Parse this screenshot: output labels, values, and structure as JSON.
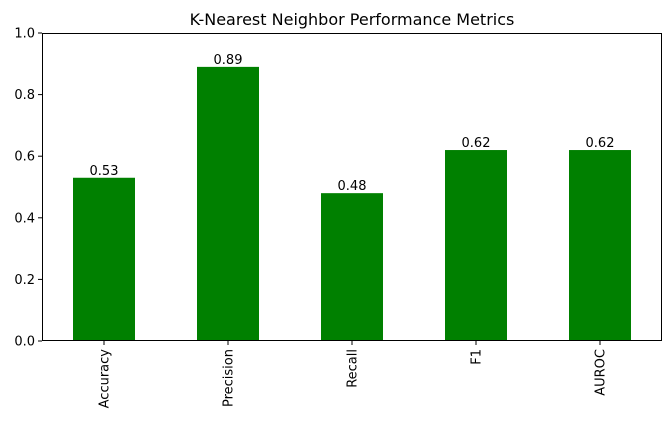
{
  "chart_data": {
    "type": "bar",
    "title": "K-Nearest Neighbor Performance Metrics",
    "categories": [
      "Accuracy",
      "Precision",
      "Recall",
      "F1",
      "AUROC"
    ],
    "values": [
      0.53,
      0.89,
      0.48,
      0.62,
      0.62
    ],
    "value_labels": [
      "0.53",
      "0.89",
      "0.48",
      "0.62",
      "0.62"
    ],
    "ylim": [
      0,
      1.0
    ],
    "yticks": [
      0.0,
      0.2,
      0.4,
      0.6,
      0.8,
      1.0
    ],
    "ytick_labels": [
      "0.0",
      "0.2",
      "0.4",
      "0.6",
      "0.8",
      "1.0"
    ],
    "xlabel": "",
    "ylabel": "",
    "bar_color": "#008000",
    "grid": false,
    "legend": false
  }
}
